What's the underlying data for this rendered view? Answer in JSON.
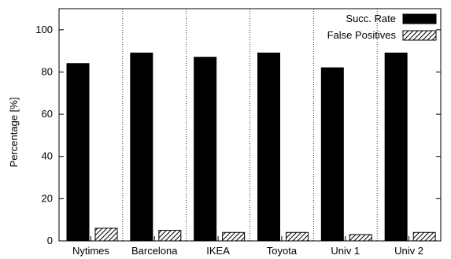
{
  "chart_data": {
    "type": "bar",
    "ylabel": "Percentage [%]",
    "xlabel": "",
    "ylim": [
      0,
      110
    ],
    "yticks": [
      0,
      20,
      40,
      60,
      80,
      100
    ],
    "grid": false,
    "legend_position": "top-right",
    "categories": [
      "Nytimes",
      "Barcelona",
      "IKEA",
      "Toyota",
      "Univ 1",
      "Univ 2"
    ],
    "series": [
      {
        "name": "Succ. Rate",
        "values": [
          84,
          89,
          87,
          89,
          82,
          89
        ],
        "color": "#000000",
        "pattern": "solid"
      },
      {
        "name": "False Positives",
        "values": [
          6,
          5,
          4,
          4,
          3,
          4
        ],
        "color": "#ffffff",
        "pattern": "hatch"
      }
    ]
  }
}
